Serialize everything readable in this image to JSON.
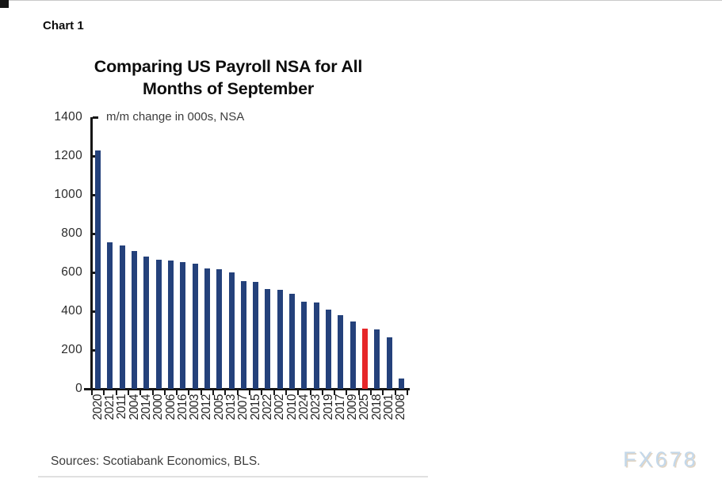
{
  "page": {
    "chart_label": "Chart 1",
    "watermark": "FX678"
  },
  "chart_data": {
    "type": "bar",
    "title": "Comparing US Payroll NSA for All Months of September",
    "subtitle": "m/m change in 000s, NSA",
    "source_note": "Sources: Scotiabank Economics, BLS.",
    "categories": [
      "2020",
      "2021",
      "2011",
      "2004",
      "2014",
      "2000",
      "2006",
      "2016",
      "2003",
      "2012",
      "2005",
      "2013",
      "2007",
      "2015",
      "2022",
      "2002",
      "2010",
      "2024",
      "2023",
      "2019",
      "2017",
      "2009",
      "2025",
      "2018",
      "2001",
      "2008"
    ],
    "values": [
      1230,
      755,
      740,
      710,
      680,
      665,
      660,
      655,
      645,
      620,
      615,
      600,
      555,
      550,
      515,
      510,
      490,
      450,
      445,
      410,
      380,
      345,
      310,
      305,
      265,
      55
    ],
    "highlight_category": "2025",
    "bar_color": "#24417b",
    "highlight_color": "#e62629",
    "axis_color": "#161616",
    "ylim": [
      0,
      1400
    ],
    "yticks": [
      1400,
      1200,
      1000,
      800,
      600,
      400,
      200,
      0
    ],
    "grid": "off",
    "legend": "none"
  }
}
